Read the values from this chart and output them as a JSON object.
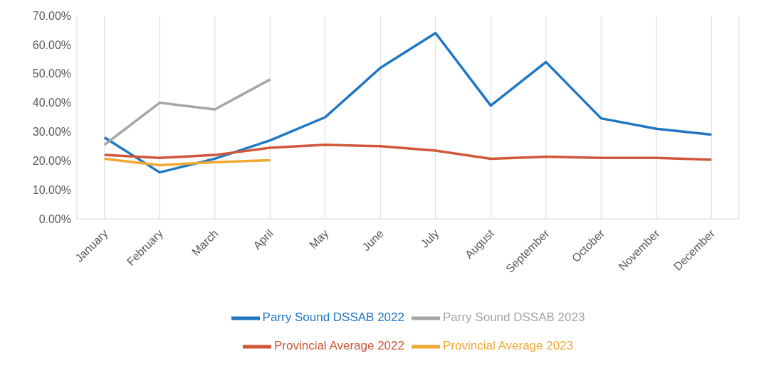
{
  "chart_data": {
    "type": "line",
    "categories": [
      "January",
      "February",
      "March",
      "April",
      "May",
      "June",
      "July",
      "August",
      "September",
      "October",
      "November",
      "December"
    ],
    "series": [
      {
        "name": "Parry Sound DSSAB 2022",
        "color": "#1f77c4",
        "values": [
          28,
          16,
          20.7,
          27,
          35,
          52,
          64,
          39,
          54,
          34.6,
          31,
          29
        ]
      },
      {
        "name": "Provincial Average 2022",
        "color": "#d0573a",
        "values": [
          22,
          21,
          22,
          24.5,
          25.5,
          25,
          23.5,
          20.7,
          21.4,
          21,
          21,
          20.4
        ]
      },
      {
        "name": "Parry Sound DSSAB 2023",
        "color": "#a5a5a5",
        "values": [
          25.5,
          40,
          37.7,
          48,
          null,
          null,
          null,
          null,
          null,
          null,
          null,
          null
        ]
      },
      {
        "name": "Provincial Average 2023",
        "color": "#f0a830",
        "values": [
          20.7,
          18.5,
          19.5,
          20.2,
          null,
          null,
          null,
          null,
          null,
          null,
          null,
          null
        ]
      }
    ],
    "ylim": [
      0,
      70
    ],
    "yticks": [
      {
        "value": 0,
        "label": "0.00%"
      },
      {
        "value": 10,
        "label": "10.00%"
      },
      {
        "value": 20,
        "label": "20.00%"
      },
      {
        "value": 30,
        "label": "30.00%"
      },
      {
        "value": 40,
        "label": "40.00%"
      },
      {
        "value": 50,
        "label": "50.00%"
      },
      {
        "value": 60,
        "label": "60.00%"
      },
      {
        "value": 70,
        "label": "70.00%"
      }
    ],
    "grid": "x",
    "legend": "bottom",
    "marker": "none",
    "line_style": "solid"
  }
}
